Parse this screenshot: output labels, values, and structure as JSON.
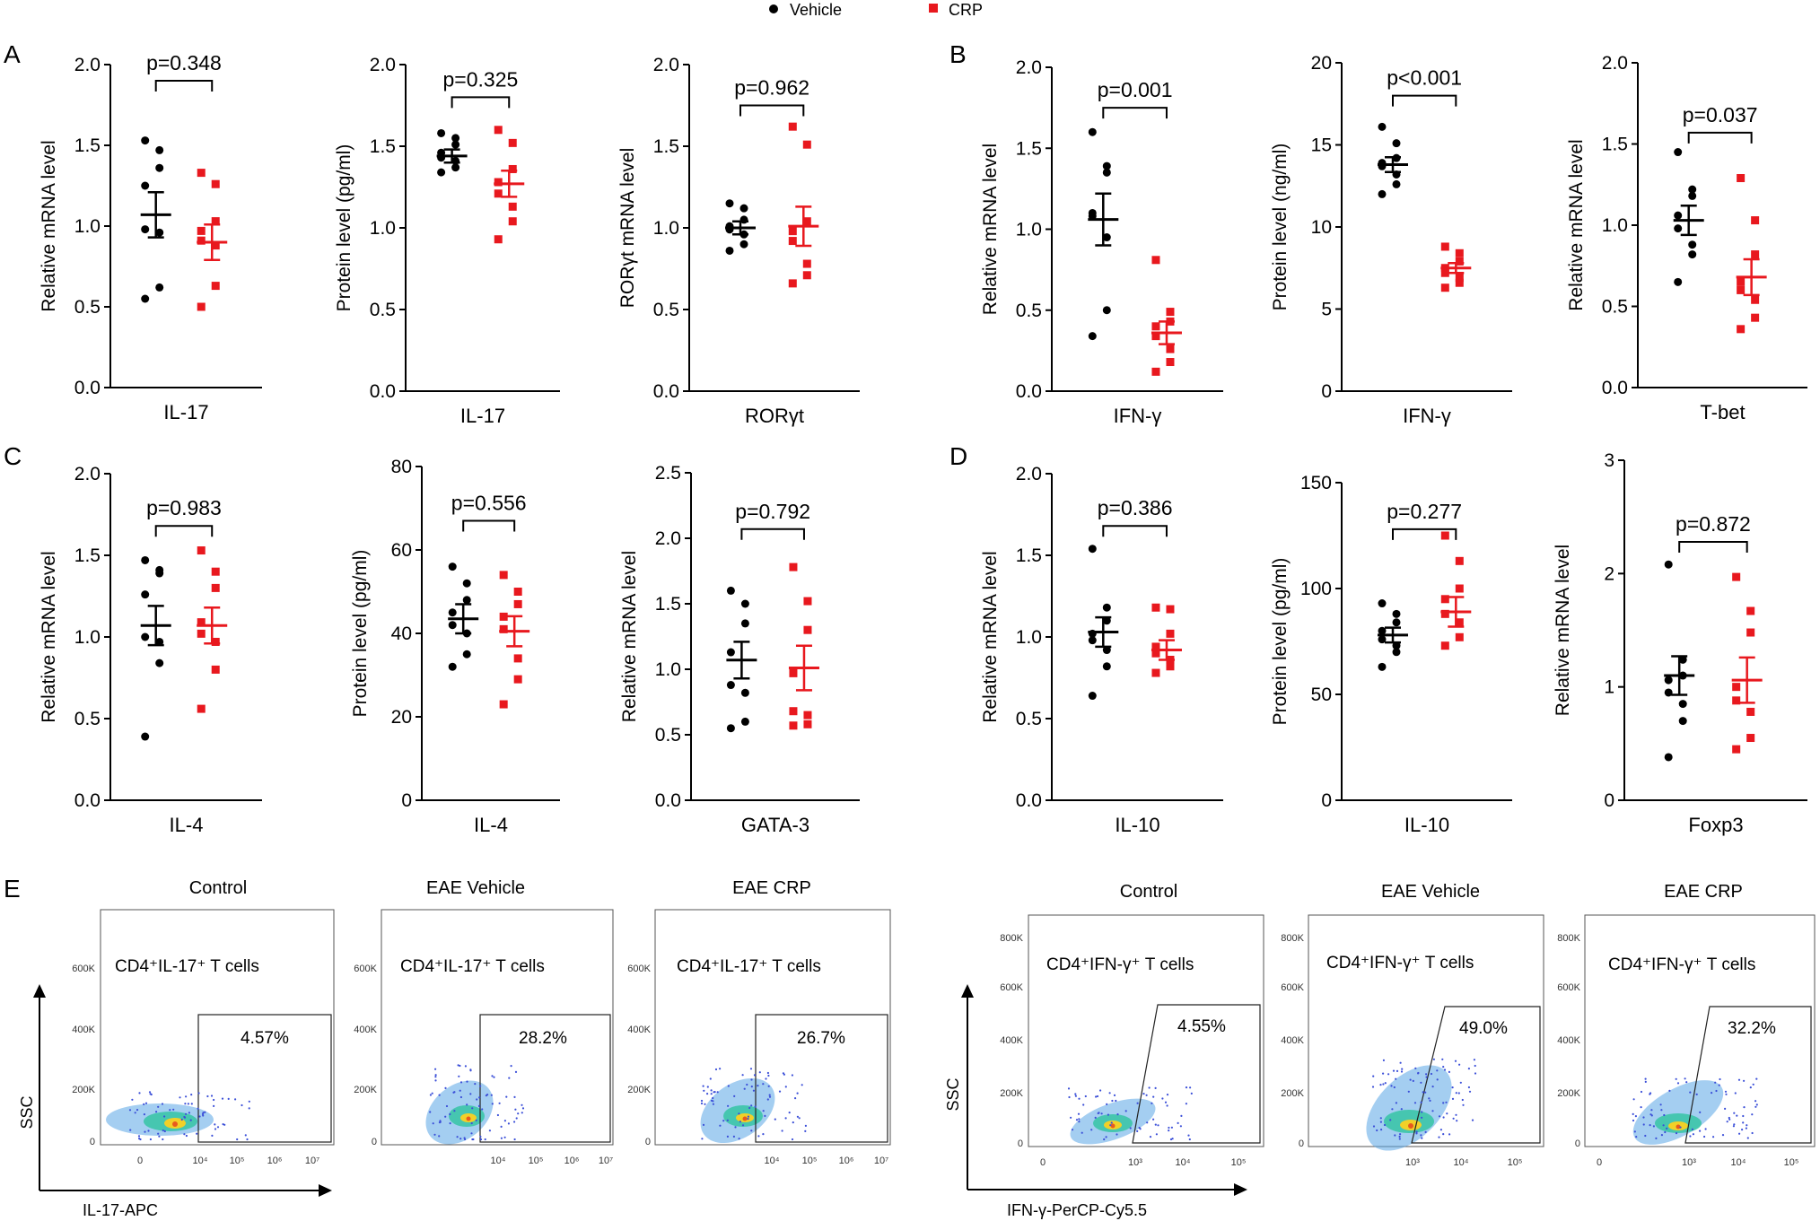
{
  "legend": {
    "vehicle_label": "Vehicle",
    "crp_label": "CRP",
    "vehicle_color": "#000000",
    "crp_color": "#e8181e"
  },
  "panels": {
    "A": "A",
    "B": "B",
    "C": "C",
    "D": "D",
    "E": "E"
  },
  "chart_data": [
    {
      "id": "a1",
      "type": "scatter",
      "ylabel": "Relative mRNA level",
      "xlabel": "IL-17",
      "ylim": [
        0,
        2.0
      ],
      "yticks": [
        0.0,
        0.5,
        1.0,
        1.5,
        2.0
      ],
      "tick_decimals": 1,
      "pvalue": "p=0.348",
      "bracket_y": 1.9,
      "series": [
        {
          "name": "Vehicle",
          "mean": 1.07,
          "sem": 0.14,
          "values": [
            1.53,
            1.47,
            1.36,
            1.25,
            0.98,
            0.96,
            0.62,
            0.55
          ]
        },
        {
          "name": "CRP",
          "mean": 0.9,
          "sem": 0.11,
          "values": [
            1.33,
            1.26,
            1.03,
            0.97,
            0.91,
            0.88,
            0.63,
            0.5
          ]
        }
      ]
    },
    {
      "id": "a2",
      "type": "scatter",
      "ylabel": "Protein level (pg/ml)",
      "xlabel": "IL-17",
      "ylim": [
        0,
        2.0
      ],
      "yticks": [
        0.0,
        0.5,
        1.0,
        1.5,
        2.0
      ],
      "tick_decimals": 1,
      "pvalue": "p=0.325",
      "bracket_y": 1.8,
      "series": [
        {
          "name": "Vehicle",
          "mean": 1.44,
          "sem": 0.04,
          "values": [
            1.58,
            1.55,
            1.51,
            1.46,
            1.43,
            1.41,
            1.37,
            1.34
          ]
        },
        {
          "name": "CRP",
          "mean": 1.27,
          "sem": 0.08,
          "values": [
            1.6,
            1.52,
            1.36,
            1.28,
            1.21,
            1.13,
            1.04,
            0.93
          ]
        }
      ]
    },
    {
      "id": "a3",
      "type": "scatter",
      "ylabel": "RORγt mRNA level",
      "xlabel": "RORγt",
      "ylim": [
        0,
        2.0
      ],
      "yticks": [
        0.0,
        0.5,
        1.0,
        1.5,
        2.0
      ],
      "tick_decimals": 1,
      "pvalue": "p=0.962",
      "bracket_y": 1.75,
      "series": [
        {
          "name": "Vehicle",
          "mean": 1.0,
          "sem": 0.04,
          "values": [
            1.15,
            1.12,
            1.05,
            1.01,
            0.99,
            0.96,
            0.9,
            0.86
          ]
        },
        {
          "name": "CRP",
          "mean": 1.01,
          "sem": 0.12,
          "values": [
            1.62,
            1.51,
            1.04,
            0.98,
            0.92,
            0.78,
            0.71,
            0.66
          ]
        }
      ]
    },
    {
      "id": "b1",
      "type": "scatter",
      "ylabel": "Relative mRNA level",
      "xlabel": "IFN-γ",
      "ylim": [
        0,
        2.0
      ],
      "yticks": [
        0.0,
        0.5,
        1.0,
        1.5,
        2.0
      ],
      "tick_decimals": 1,
      "pvalue": "p=0.001",
      "bracket_y": 1.75,
      "series": [
        {
          "name": "Vehicle",
          "mean": 1.06,
          "sem": 0.16,
          "values": [
            1.6,
            1.39,
            1.35,
            1.1,
            1.08,
            0.95,
            0.5,
            0.34
          ]
        },
        {
          "name": "CRP",
          "mean": 0.36,
          "sem": 0.07,
          "values": [
            0.81,
            0.49,
            0.43,
            0.4,
            0.34,
            0.26,
            0.18,
            0.12
          ]
        }
      ]
    },
    {
      "id": "b2",
      "type": "scatter",
      "ylabel": "Protein level (ng/ml)",
      "xlabel": "IFN-γ",
      "ylim": [
        0,
        20
      ],
      "yticks": [
        0,
        5,
        10,
        15,
        20
      ],
      "tick_decimals": 0,
      "pvalue": "p<0.001",
      "bracket_y": 18.0,
      "series": [
        {
          "name": "Vehicle",
          "mean": 13.8,
          "sem": 0.45,
          "values": [
            16.1,
            15.1,
            14.2,
            13.9,
            13.7,
            13.2,
            12.6,
            12.0
          ]
        },
        {
          "name": "CRP",
          "mean": 7.5,
          "sem": 0.3,
          "values": [
            8.8,
            8.4,
            7.9,
            7.5,
            7.2,
            6.9,
            6.6,
            6.3
          ]
        }
      ]
    },
    {
      "id": "b3",
      "type": "scatter",
      "ylabel": "Relative mRNA level",
      "xlabel": "T-bet",
      "ylim": [
        0,
        2.0
      ],
      "yticks": [
        0.0,
        0.5,
        1.0,
        1.5,
        2.0
      ],
      "tick_decimals": 1,
      "pvalue": "p=0.037",
      "bracket_y": 1.57,
      "series": [
        {
          "name": "Vehicle",
          "mean": 1.03,
          "sem": 0.09,
          "values": [
            1.45,
            1.22,
            1.18,
            1.06,
            0.98,
            0.88,
            0.82,
            0.65
          ]
        },
        {
          "name": "CRP",
          "mean": 0.68,
          "sem": 0.11,
          "values": [
            1.29,
            1.03,
            0.82,
            0.65,
            0.6,
            0.54,
            0.43,
            0.36
          ]
        }
      ]
    },
    {
      "id": "c1",
      "type": "scatter",
      "ylabel": "Relative mRNA level",
      "xlabel": "IL-4",
      "ylim": [
        0,
        2.0
      ],
      "yticks": [
        0.0,
        0.5,
        1.0,
        1.5,
        2.0
      ],
      "tick_decimals": 1,
      "pvalue": "p=0.983",
      "bracket_y": 1.68,
      "series": [
        {
          "name": "Vehicle",
          "mean": 1.07,
          "sem": 0.12,
          "values": [
            1.47,
            1.41,
            1.39,
            1.26,
            1.0,
            0.97,
            0.84,
            0.39
          ]
        },
        {
          "name": "CRP",
          "mean": 1.07,
          "sem": 0.11,
          "values": [
            1.53,
            1.4,
            1.3,
            1.09,
            1.02,
            0.97,
            0.8,
            0.56
          ]
        }
      ]
    },
    {
      "id": "c2",
      "type": "scatter",
      "ylabel": "Protein level (pg/ml)",
      "xlabel": "IL-4",
      "ylim": [
        0,
        80
      ],
      "yticks": [
        0,
        20,
        40,
        60,
        80
      ],
      "tick_decimals": 0,
      "pvalue": "p=0.556",
      "bracket_y": 67,
      "series": [
        {
          "name": "Vehicle",
          "mean": 43.5,
          "sem": 3.5,
          "values": [
            56,
            52,
            48,
            45,
            42,
            40,
            35,
            32
          ]
        },
        {
          "name": "CRP",
          "mean": 40.5,
          "sem": 3.6,
          "values": [
            54,
            50,
            47,
            44,
            41,
            34,
            29,
            23
          ]
        }
      ]
    },
    {
      "id": "c3",
      "type": "scatter",
      "ylabel": "Relative mRNA level",
      "xlabel": "GATA-3",
      "ylim": [
        0,
        2.5
      ],
      "yticks": [
        0.0,
        0.5,
        1.0,
        1.5,
        2.0,
        2.5
      ],
      "tick_decimals": 1,
      "pvalue": "p=0.792",
      "bracket_y": 2.07,
      "series": [
        {
          "name": "Vehicle",
          "mean": 1.07,
          "sem": 0.14,
          "values": [
            1.6,
            1.5,
            1.35,
            1.13,
            0.88,
            0.82,
            0.6,
            0.55
          ]
        },
        {
          "name": "CRP",
          "mean": 1.01,
          "sem": 0.17,
          "values": [
            1.78,
            1.52,
            1.3,
            0.97,
            0.68,
            0.65,
            0.58,
            0.57
          ]
        }
      ]
    },
    {
      "id": "d1",
      "type": "scatter",
      "ylabel": "Relative mRNA level",
      "xlabel": "IL-10",
      "ylim": [
        0,
        2.0
      ],
      "yticks": [
        0.0,
        0.5,
        1.0,
        1.5,
        2.0
      ],
      "tick_decimals": 1,
      "pvalue": "p=0.386",
      "bracket_y": 1.68,
      "series": [
        {
          "name": "Vehicle",
          "mean": 1.03,
          "sem": 0.09,
          "values": [
            1.54,
            1.18,
            1.1,
            1.02,
            0.98,
            0.92,
            0.82,
            0.64
          ]
        },
        {
          "name": "CRP",
          "mean": 0.92,
          "sem": 0.06,
          "values": [
            1.18,
            1.17,
            1.02,
            0.94,
            0.9,
            0.86,
            0.82,
            0.78
          ]
        }
      ]
    },
    {
      "id": "d2",
      "type": "scatter",
      "ylabel": "Protein level (pg/ml)",
      "xlabel": "IL-10",
      "ylim": [
        0,
        150
      ],
      "yticks": [
        0,
        50,
        100,
        150
      ],
      "tick_decimals": 0,
      "pvalue": "p=0.277",
      "bracket_y": 128,
      "series": [
        {
          "name": "Vehicle",
          "mean": 78,
          "sem": 3.5,
          "values": [
            93,
            88,
            84,
            80,
            76,
            73,
            70,
            63
          ]
        },
        {
          "name": "CRP",
          "mean": 89,
          "sem": 7,
          "values": [
            125,
            113,
            100,
            95,
            88,
            84,
            77,
            73
          ]
        }
      ]
    },
    {
      "id": "d3",
      "type": "scatter",
      "ylabel": "Relative mRNA level",
      "xlabel": "Foxp3",
      "ylim": [
        0,
        3
      ],
      "yticks": [
        0,
        1,
        2,
        3
      ],
      "tick_decimals": 0,
      "pvalue": "p=0.872",
      "bracket_y": 2.28,
      "series": [
        {
          "name": "Vehicle",
          "mean": 1.1,
          "sem": 0.17,
          "values": [
            2.08,
            1.24,
            1.1,
            1.06,
            0.95,
            0.85,
            0.7,
            0.38
          ]
        },
        {
          "name": "CRP",
          "mean": 1.06,
          "sem": 0.2,
          "values": [
            1.97,
            1.67,
            1.48,
            1.0,
            0.88,
            0.78,
            0.55,
            0.45
          ]
        }
      ]
    }
  ],
  "flow": {
    "left": {
      "x_axis_label": "IL-17-APC",
      "y_axis_label": "SSC",
      "y_ticks": [
        "600K",
        "400K",
        "200K",
        "0"
      ],
      "x_ticks": [
        "0",
        "10⁴",
        "10⁵",
        "10⁶",
        "10⁷"
      ],
      "plots": [
        {
          "title": "Control",
          "gate_label": "CD4⁺IL-17⁺ T cells",
          "percent": "4.57%"
        },
        {
          "title": "EAE  Vehicle",
          "gate_label": "CD4⁺IL-17⁺ T cells",
          "percent": "28.2%"
        },
        {
          "title": "EAE CRP",
          "gate_label": "CD4⁺IL-17⁺ T cells",
          "percent": "26.7%"
        }
      ]
    },
    "right": {
      "x_axis_label": "IFN-γ-PerCP-Cy5.5",
      "y_axis_label": "SSC",
      "y_ticks": [
        "800K",
        "600K",
        "400K",
        "200K",
        "0"
      ],
      "x_ticks": [
        "0",
        "10³",
        "10⁴",
        "10⁵"
      ],
      "plots": [
        {
          "title": "Control",
          "gate_label": "CD4⁺IFN-γ⁺ T cells",
          "percent": "4.55%"
        },
        {
          "title": "EAE  Vehicle",
          "gate_label": "CD4⁺IFN-γ⁺ T cells",
          "percent": "49.0%"
        },
        {
          "title": "EAE CRP",
          "gate_label": "CD4⁺IFN-γ⁺ T cells",
          "percent": "32.2%"
        }
      ]
    }
  }
}
